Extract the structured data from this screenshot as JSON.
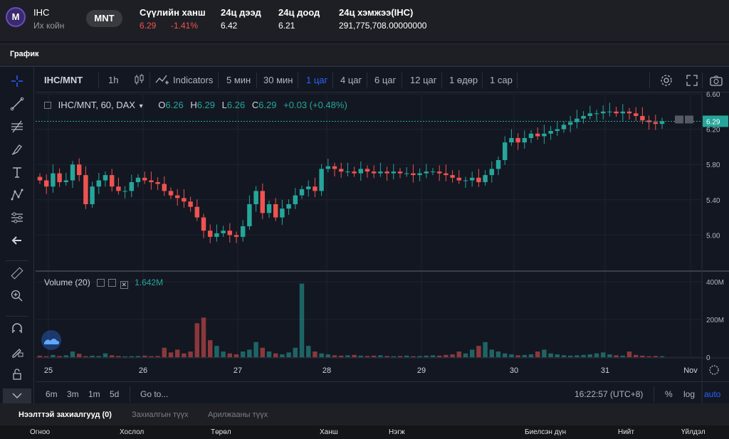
{
  "header": {
    "logo_letter": "M",
    "symbol": "IHC",
    "symbol_name": "Их койн",
    "currency_button": "MNT",
    "last_price_label": "Сүүлийн ханш",
    "last_price": "6.29",
    "change_pct": "-1.41%",
    "high_label": "24ц дээд",
    "high": "6.42",
    "low_label": "24ц доод",
    "low": "6.21",
    "volume_label": "24ц хэмжээ(IHC)",
    "volume": "291,775,708.00000000"
  },
  "section_tab": "График",
  "toolbar": {
    "symbol": "IHC/MNT",
    "interval": "1h",
    "indicators": "Indicators",
    "intervals": [
      "5 мин",
      "30 мин",
      "1 цаг",
      "4 цаг",
      "6 цаг",
      "12 цаг",
      "1 өдөр",
      "1 сар"
    ],
    "active_interval": "1 цаг"
  },
  "legend": {
    "title": "IHC/MNT, 60, DAX",
    "o_label": "O",
    "o": "6.26",
    "h_label": "H",
    "h": "6.29",
    "l_label": "L",
    "l": "6.26",
    "c_label": "C",
    "c": "6.29",
    "change": "+0.03 (+0.48%)"
  },
  "volume_legend": {
    "title": "Volume (20)",
    "value": "1.642M"
  },
  "price_axis": {
    "ticks": [
      "6.60",
      "6.20",
      "5.80",
      "5.40",
      "5.00"
    ],
    "last": "6.29"
  },
  "volume_axis": {
    "ticks": [
      "400M",
      "200M",
      "0"
    ]
  },
  "time_axis": {
    "ticks": [
      "25",
      "26",
      "27",
      "28",
      "29",
      "30",
      "31",
      "Nov"
    ]
  },
  "bottom": {
    "ranges": [
      "6m",
      "3m",
      "1m",
      "5d"
    ],
    "goto": "Go to...",
    "clock": "16:22:57 (UTC+8)",
    "pct": "%",
    "log": "log",
    "auto": "auto"
  },
  "orders": {
    "tabs": [
      "Нээлттэй захиалгууд (0)",
      "Захиалгын түүх",
      "Арилжааны түүх"
    ],
    "columns": [
      "Огноо",
      "Хослол",
      "Төрөл",
      "Ханш",
      "Нэгж",
      "Биелсэн дүн",
      "Нийт",
      "Үйлдэл"
    ]
  },
  "colors": {
    "up": "#26a69a",
    "down": "#ef5350",
    "accent": "#2962ff",
    "bg": "#131722"
  },
  "chart_data": {
    "type": "candlestick",
    "price_ylim": [
      4.6,
      6.6
    ],
    "volume_ylim": [
      0,
      400
    ],
    "volume_unit": "M",
    "x_ticks": [
      "25",
      "26",
      "27",
      "28",
      "29",
      "30",
      "31",
      "Nov"
    ],
    "close_path": [
      5.62,
      5.55,
      5.7,
      5.6,
      5.62,
      5.8,
      5.68,
      5.35,
      5.55,
      5.62,
      5.68,
      5.55,
      5.5,
      5.5,
      5.6,
      5.65,
      5.62,
      5.6,
      5.58,
      5.5,
      5.45,
      5.42,
      5.38,
      5.32,
      5.2,
      5.05,
      4.98,
      5.02,
      5.05,
      5.0,
      4.98,
      5.1,
      5.35,
      5.5,
      5.25,
      5.35,
      5.2,
      5.3,
      5.35,
      5.45,
      5.52,
      5.55,
      5.5,
      5.75,
      5.78,
      5.75,
      5.72,
      5.72,
      5.7,
      5.75,
      5.72,
      5.7,
      5.72,
      5.7,
      5.72,
      5.7,
      5.7,
      5.68,
      5.7,
      5.72,
      5.72,
      5.7,
      5.68,
      5.65,
      5.62,
      5.62,
      5.65,
      5.6,
      5.68,
      5.75,
      5.85,
      6.05,
      6.1,
      6.05,
      6.1,
      6.15,
      6.12,
      6.15,
      6.18,
      6.2,
      6.25,
      6.28,
      6.32,
      6.35,
      6.38,
      6.38,
      6.4,
      6.4,
      6.38,
      6.4,
      6.38,
      6.35,
      6.3,
      6.28,
      6.26,
      6.29
    ],
    "volume_path": [
      8,
      5,
      12,
      6,
      10,
      30,
      18,
      5,
      8,
      6,
      20,
      10,
      6,
      4,
      5,
      6,
      8,
      5,
      6,
      50,
      25,
      40,
      20,
      30,
      180,
      210,
      90,
      60,
      30,
      20,
      15,
      30,
      40,
      80,
      50,
      30,
      20,
      15,
      25,
      50,
      390,
      60,
      30,
      20,
      15,
      10,
      8,
      10,
      12,
      8,
      6,
      8,
      10,
      6,
      5,
      6,
      8,
      5,
      6,
      8,
      10,
      8,
      12,
      15,
      30,
      20,
      40,
      60,
      80,
      40,
      30,
      20,
      15,
      10,
      12,
      15,
      30,
      40,
      20,
      15,
      10,
      8,
      10,
      12,
      15,
      20,
      25,
      15,
      10,
      8,
      30,
      12,
      8,
      5,
      6,
      5
    ]
  }
}
